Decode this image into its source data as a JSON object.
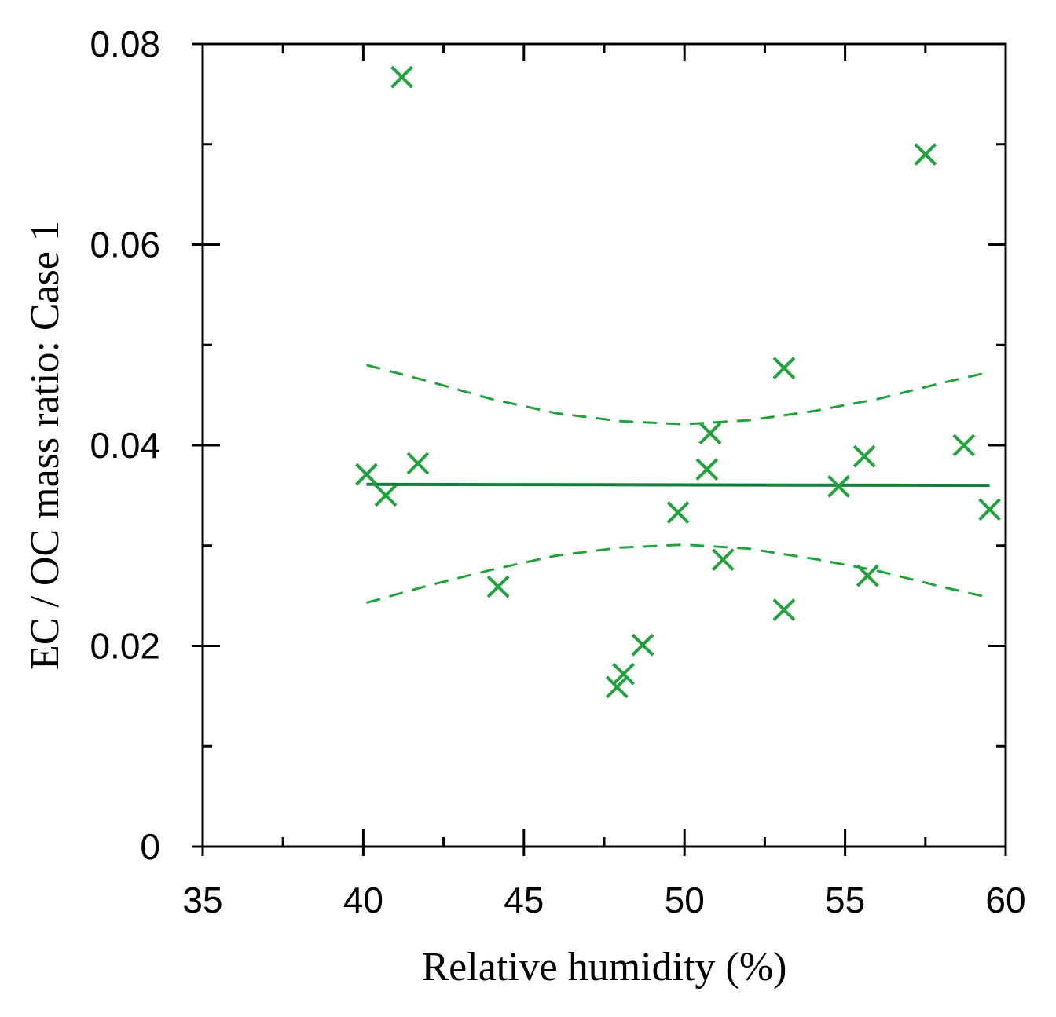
{
  "chart_data": {
    "type": "scatter",
    "title": "",
    "xlabel": "Relative humidity (%)",
    "ylabel": "EC / OC mass ratio: Case 1",
    "xlim": [
      35,
      60
    ],
    "ylim": [
      0,
      0.08
    ],
    "x_ticks": [
      35,
      40,
      45,
      50,
      55,
      60
    ],
    "x_tick_labels": [
      "35",
      "40",
      "45",
      "50",
      "55",
      "60"
    ],
    "y_ticks": [
      0,
      0.02,
      0.04,
      0.06,
      0.08
    ],
    "y_tick_labels": [
      "0",
      "0.02",
      "0.04",
      "0.06",
      "0.08"
    ],
    "x_minor_ticks": [
      37.5,
      42.5,
      47.5,
      52.5,
      57.5
    ],
    "y_minor_ticks": [
      0.01,
      0.03,
      0.05,
      0.07
    ],
    "grid": false,
    "colors": {
      "marker": "#1fa33a",
      "fit": "#1b7a3a",
      "ci": "#1fa33a",
      "axis": "#000000"
    },
    "series": [
      {
        "name": "Observations",
        "marker": "x",
        "points": [
          {
            "x": 40.1,
            "y": 0.0371
          },
          {
            "x": 40.7,
            "y": 0.035
          },
          {
            "x": 41.2,
            "y": 0.0767
          },
          {
            "x": 41.7,
            "y": 0.0382
          },
          {
            "x": 44.2,
            "y": 0.0259
          },
          {
            "x": 47.9,
            "y": 0.0159
          },
          {
            "x": 48.1,
            "y": 0.0172
          },
          {
            "x": 48.7,
            "y": 0.0201
          },
          {
            "x": 49.8,
            "y": 0.0333
          },
          {
            "x": 50.7,
            "y": 0.0376
          },
          {
            "x": 50.8,
            "y": 0.0412
          },
          {
            "x": 51.2,
            "y": 0.0286
          },
          {
            "x": 53.1,
            "y": 0.0477
          },
          {
            "x": 53.1,
            "y": 0.0236
          },
          {
            "x": 54.8,
            "y": 0.0359
          },
          {
            "x": 55.6,
            "y": 0.0389
          },
          {
            "x": 55.7,
            "y": 0.027
          },
          {
            "x": 57.5,
            "y": 0.069
          },
          {
            "x": 58.7,
            "y": 0.04
          },
          {
            "x": 59.5,
            "y": 0.0336
          }
        ]
      },
      {
        "name": "Linear fit",
        "style": "solid",
        "x": [
          40.1,
          59.5
        ],
        "y": [
          0.0361,
          0.036
        ]
      },
      {
        "name": "Upper confidence band",
        "style": "dashed",
        "x": [
          40.1,
          42,
          44,
          46,
          48,
          50,
          52,
          54,
          56,
          58,
          59.5
        ],
        "y": [
          0.048,
          0.0464,
          0.0446,
          0.0432,
          0.0424,
          0.0421,
          0.0425,
          0.0434,
          0.0446,
          0.0462,
          0.0473
        ]
      },
      {
        "name": "Lower confidence band",
        "style": "dashed",
        "x": [
          40.1,
          42,
          44,
          46,
          48,
          50,
          52,
          54,
          56,
          58,
          59.5
        ],
        "y": [
          0.0243,
          0.026,
          0.0276,
          0.029,
          0.0298,
          0.0301,
          0.0297,
          0.0287,
          0.0275,
          0.0259,
          0.0248
        ]
      }
    ]
  }
}
